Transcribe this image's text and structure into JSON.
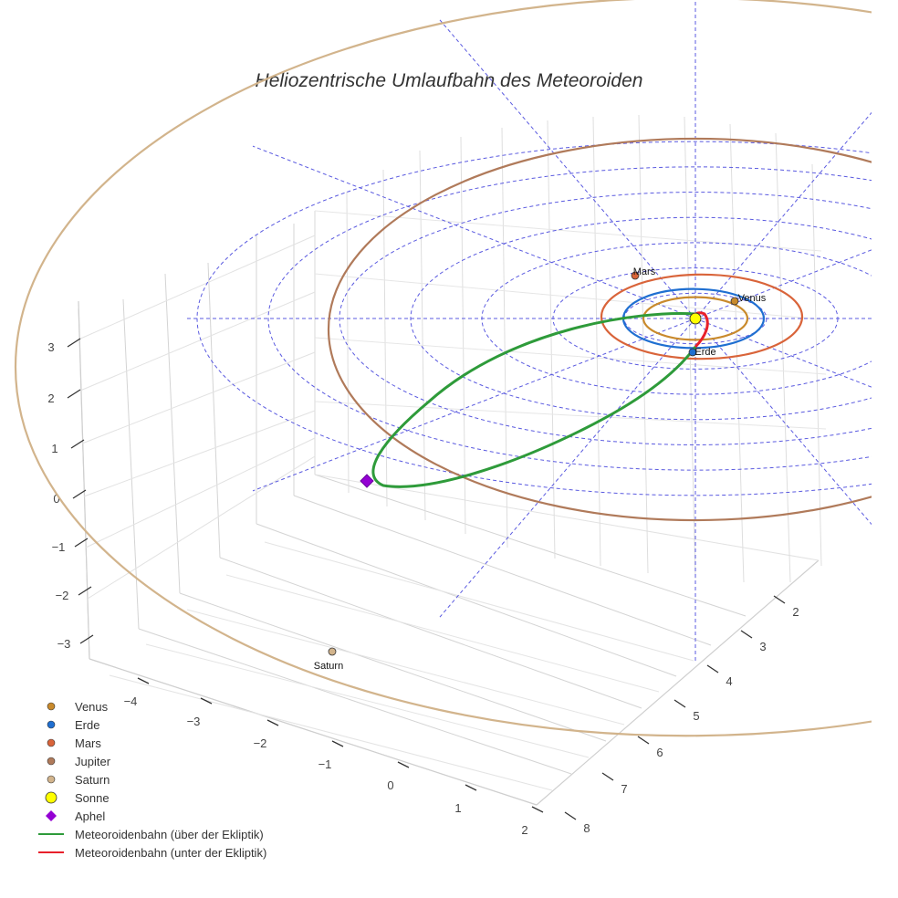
{
  "chart_data": {
    "type": "line",
    "title": "Heliozentrische Umlaufbahn des Meteoroiden",
    "axes": {
      "x_ticks": [
        "−4",
        "−3",
        "−2",
        "−1",
        "0",
        "1",
        "2"
      ],
      "y_ticks": [
        "2",
        "3",
        "4",
        "5",
        "6",
        "7",
        "8"
      ],
      "z_ticks": [
        "3",
        "2",
        "1",
        "0",
        "−1",
        "−2",
        "−3"
      ],
      "grid": true
    },
    "ecliptic_reference_rings_au": [
      1,
      2,
      3,
      4,
      5,
      6,
      7
    ],
    "planets": [
      {
        "name": "Venus",
        "label": "Venus",
        "orbit_radius_au": 0.72,
        "color": "#c98a2c"
      },
      {
        "name": "Erde",
        "label": "Erde",
        "orbit_radius_au": 1.0,
        "color": "#1f6fd1"
      },
      {
        "name": "Mars",
        "label": "Mars",
        "orbit_radius_au": 1.52,
        "color": "#d9643a"
      },
      {
        "name": "Jupiter",
        "label": "",
        "orbit_radius_au": 5.2,
        "color": "#b07a5a"
      },
      {
        "name": "Saturn",
        "label": "Saturn",
        "orbit_radius_au": 9.54,
        "color": "#d2b48c"
      }
    ],
    "sun": {
      "name": "Sonne",
      "color": "#ffff00"
    },
    "aphel": {
      "name": "Aphel",
      "color": "#9400d3"
    },
    "series": [
      {
        "name": "Meteoroidenbahn (über der Ekliptik)",
        "color": "#2e9b3a"
      },
      {
        "name": "Meteoroidenbahn (unter der Ekliptik)",
        "color": "#e8202a"
      }
    ],
    "legend": [
      {
        "label": "Venus",
        "kind": "dot",
        "color": "#c98a2c"
      },
      {
        "label": "Erde",
        "kind": "dot",
        "color": "#1f6fd1"
      },
      {
        "label": "Mars",
        "kind": "dot",
        "color": "#d9643a"
      },
      {
        "label": "Jupiter",
        "kind": "dot",
        "color": "#b07a5a"
      },
      {
        "label": "Saturn",
        "kind": "dot",
        "color": "#d2b48c"
      },
      {
        "label": "Sonne",
        "kind": "bigdot",
        "color": "#ffff00"
      },
      {
        "label": "Aphel",
        "kind": "diamond",
        "color": "#9400d3"
      },
      {
        "label": "Meteoroidenbahn (über der Ekliptik)",
        "kind": "line",
        "color": "#2e9b3a"
      },
      {
        "label": "Meteoroidenbahn (unter der Ekliptik)",
        "kind": "line",
        "color": "#e8202a"
      }
    ],
    "legend_position": "bottom-left"
  }
}
